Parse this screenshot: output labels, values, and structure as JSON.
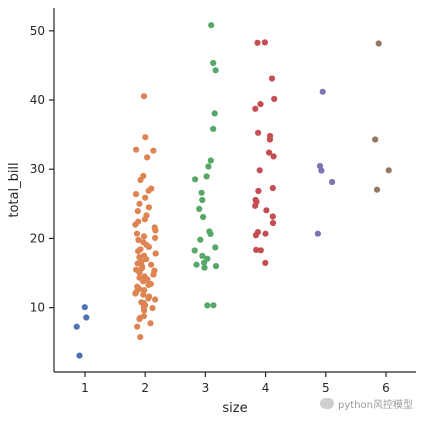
{
  "chart_data": {
    "type": "scatter",
    "title": "",
    "xlabel": "size",
    "ylabel": "total_bill",
    "categories": [
      "1",
      "2",
      "3",
      "4",
      "5",
      "6"
    ],
    "ylim": [
      0.7,
      53.3
    ],
    "yticks": [
      10,
      20,
      30,
      40,
      50
    ],
    "grid": false,
    "legend": "none",
    "colors": [
      "#4c72b0",
      "#dd8452",
      "#55a868",
      "#c44e52",
      "#8172b3",
      "#937860"
    ],
    "series": [
      {
        "values": [
          10.07,
          8.58,
          7.25,
          3.07
        ]
      },
      {
        "values": [
          40.55,
          34.63,
          32.83,
          32.68,
          31.71,
          29.03,
          28.44,
          27.2,
          26.88,
          26.41,
          25.89,
          25.0,
          24.5,
          23.95,
          23.33,
          22.76,
          22.42,
          22.0,
          21.58,
          21.16,
          20.69,
          20.29,
          20.08,
          19.77,
          19.44,
          19.08,
          18.78,
          18.43,
          18.15,
          17.82,
          17.51,
          17.29,
          17.0,
          16.66,
          16.4,
          16.21,
          15.98,
          15.69,
          15.48,
          15.36,
          15.06,
          14.78,
          14.52,
          14.31,
          14.07,
          13.81,
          13.42,
          13.28,
          13.03,
          12.69,
          12.54,
          12.26,
          12.03,
          11.87,
          11.59,
          11.35,
          11.17,
          10.77,
          10.65,
          10.33,
          10.07,
          9.94,
          9.6,
          8.77,
          8.52,
          8.35,
          7.74,
          7.25,
          5.75
        ]
      },
      {
        "values": [
          50.81,
          45.35,
          44.3,
          38.07,
          35.83,
          31.27,
          30.4,
          28.97,
          28.55,
          26.59,
          25.56,
          24.27,
          23.1,
          21.01,
          20.65,
          19.82,
          18.71,
          18.26,
          17.47,
          17.07,
          16.49,
          16.21,
          16.0,
          15.77,
          10.34,
          10.33
        ]
      },
      {
        "values": [
          48.33,
          48.27,
          43.11,
          40.17,
          39.42,
          38.73,
          35.26,
          34.81,
          34.3,
          32.4,
          31.85,
          29.85,
          27.28,
          26.86,
          25.56,
          25.28,
          24.71,
          24.06,
          23.17,
          22.23,
          20.92,
          20.69,
          20.45,
          18.29,
          16.47,
          18.35
        ]
      },
      {
        "values": [
          41.19,
          30.46,
          29.8,
          28.15,
          20.69
        ]
      },
      {
        "values": [
          48.17,
          34.3,
          29.85,
          27.05
        ]
      }
    ]
  }
}
